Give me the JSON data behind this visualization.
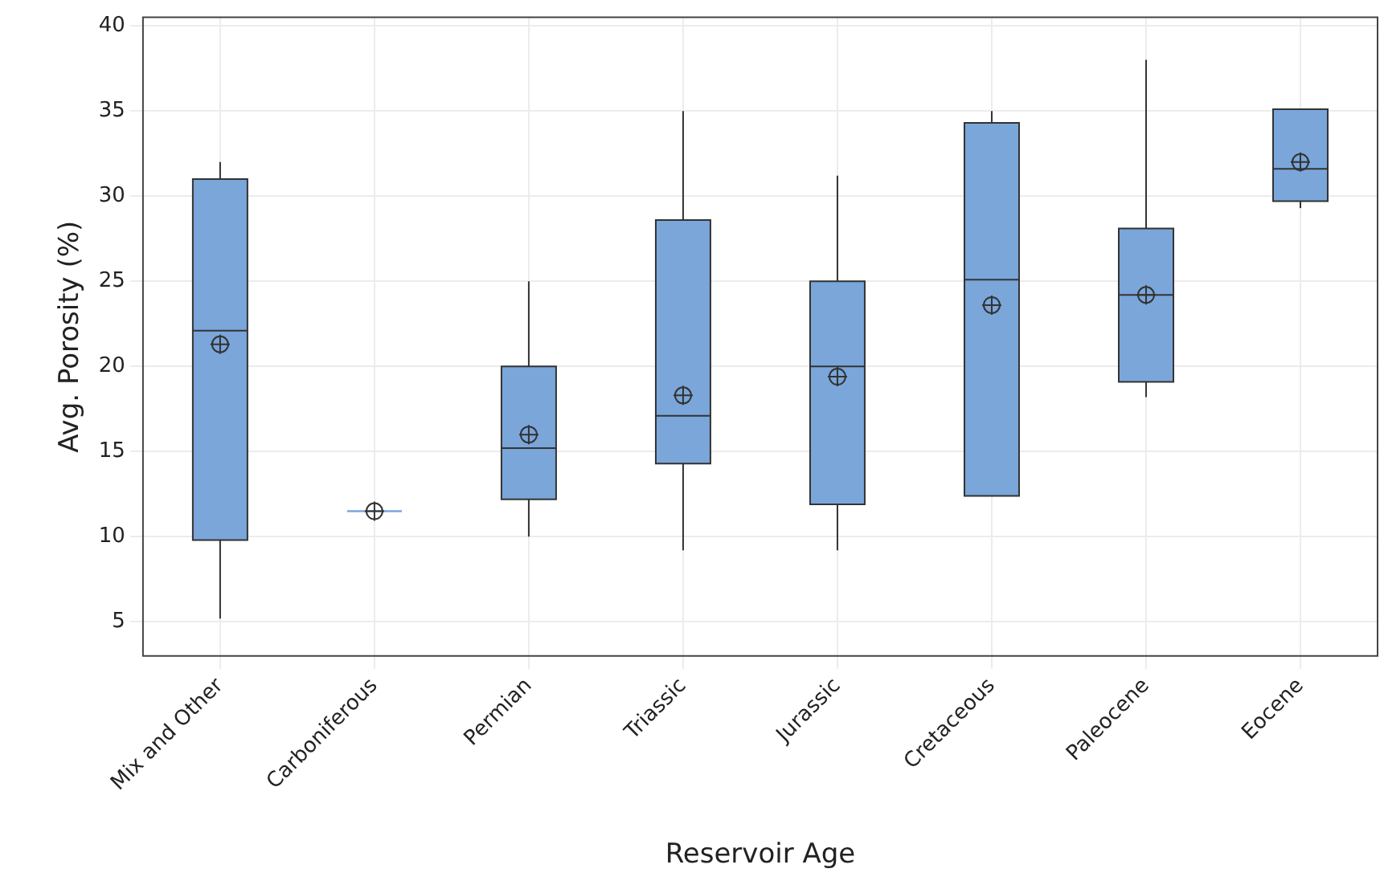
{
  "chart_data": {
    "type": "box",
    "xlabel": "Reservoir Age",
    "ylabel": "Avg. Porosity (%)",
    "categories": [
      "Mix and Other",
      "Carboniferous",
      "Permian",
      "Triassic",
      "Jurassic",
      "Cretaceous",
      "Paleocene",
      "Eocene"
    ],
    "color": "#7aa6da",
    "boxes": [
      {
        "low": 5.2,
        "q1": 9.8,
        "median": 22.1,
        "q3": 31,
        "high": 32,
        "mean": 21.3
      },
      {
        "low": 11.5,
        "q1": 11.5,
        "median": 11.5,
        "q3": 11.5,
        "high": 11.5,
        "mean": 11.5
      },
      {
        "low": 10,
        "q1": 12.2,
        "median": 15.2,
        "q3": 20,
        "high": 25,
        "mean": 16
      },
      {
        "low": 9.2,
        "q1": 14.3,
        "median": 17.1,
        "q3": 28.6,
        "high": 35,
        "mean": 18.3
      },
      {
        "low": 9.2,
        "q1": 11.9,
        "median": 20,
        "q3": 25,
        "high": 31.2,
        "mean": 19.4
      },
      {
        "low": 12.4,
        "q1": 12.4,
        "median": 25.1,
        "q3": 34.3,
        "high": 35,
        "mean": 23.6
      },
      {
        "low": 18.2,
        "q1": 19.1,
        "median": 24.2,
        "q3": 28.1,
        "high": 38,
        "mean": 24.2
      },
      {
        "low": 29.3,
        "q1": 29.7,
        "median": 31.6,
        "q3": 35.1,
        "high": 35.1,
        "mean": 32
      }
    ],
    "ylim": [
      3,
      40.5
    ],
    "yticks": [
      5,
      10,
      15,
      20,
      25,
      30,
      35,
      40
    ],
    "grid": true,
    "legend": false
  }
}
